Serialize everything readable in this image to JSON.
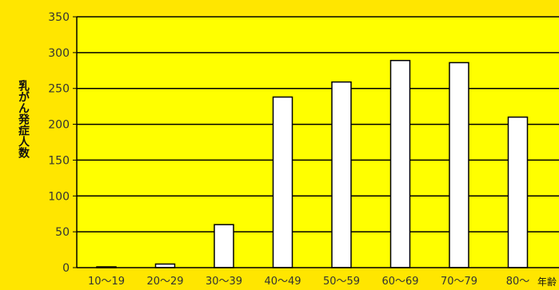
{
  "chart_data": {
    "type": "bar",
    "categories": [
      "10～19",
      "20～29",
      "30～39",
      "40～49",
      "50～59",
      "60～69",
      "70～79",
      "80～"
    ],
    "values": [
      1,
      5,
      60,
      238,
      259,
      289,
      286,
      210
    ],
    "xlabel": "年齢",
    "ylabel": "乳がん発症人数",
    "ylim": [
      0,
      350
    ],
    "yticks": [
      0,
      50,
      100,
      150,
      200,
      250,
      300,
      350
    ],
    "grid": true,
    "colors": {
      "background": "#FFE600",
      "plot_background": "#FFFF00",
      "bar_fill": "#FFFFFF",
      "bar_stroke": "#000000",
      "gridline": "#000000"
    }
  }
}
